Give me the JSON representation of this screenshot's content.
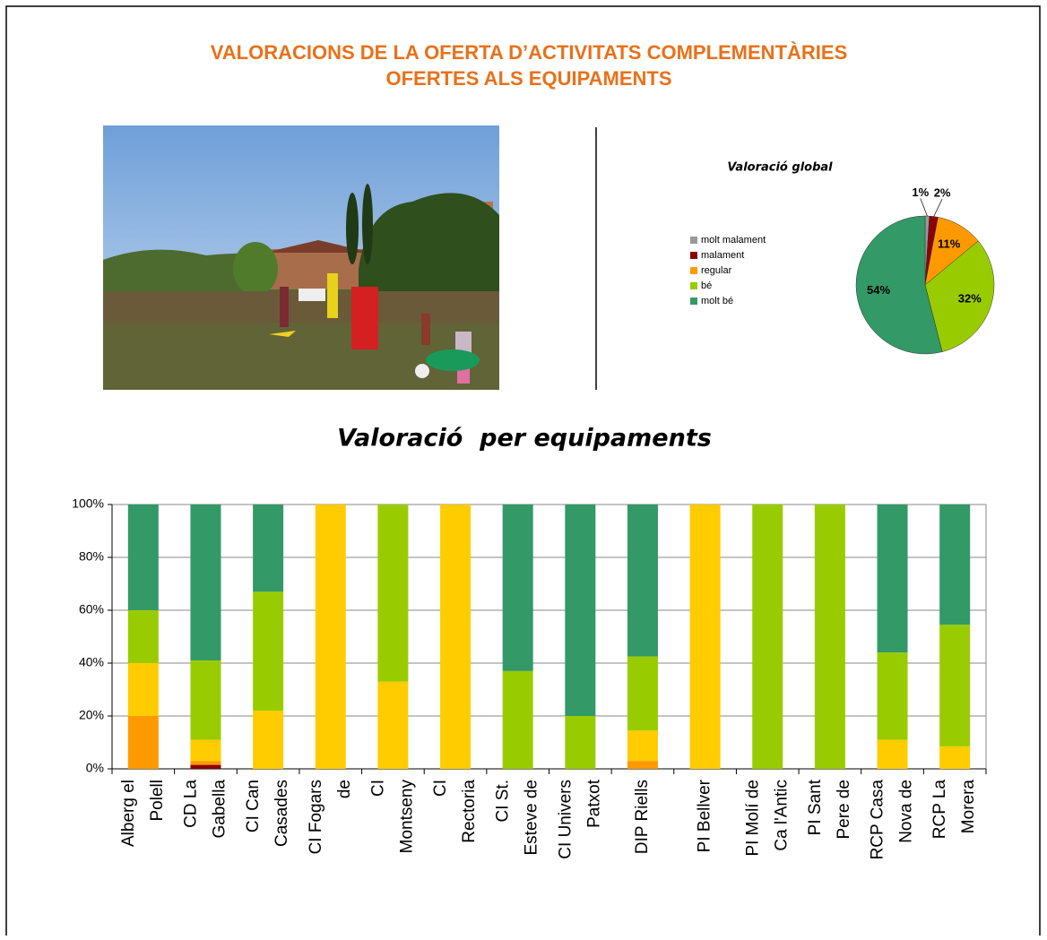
{
  "title": [
    "VALORACIONS DE LA OFERTA D’ACTIVITATS COMPLEMENTÀRIES",
    "OFERTES ALS EQUIPAMENTS"
  ],
  "chart_data": [
    {
      "type": "pie",
      "title": "Valoració global",
      "categories": [
        "molt malament",
        "malament",
        "regular",
        "bé",
        "molt bé"
      ],
      "values": [
        1,
        2,
        11,
        32,
        54
      ],
      "value_labels": [
        "1%",
        "2%",
        "11%",
        "32%",
        "54%"
      ],
      "colors": [
        "#999999",
        "#8b0000",
        "#ff9900",
        "#99cc00",
        "#339966"
      ],
      "legend": "left"
    },
    {
      "type": "bar",
      "stacked": true,
      "title": "Valoració  per equipaments",
      "categories": [
        [
          "Alberg el",
          "Polell"
        ],
        [
          "CD La",
          "Gabella"
        ],
        [
          "CI Can",
          "Casades"
        ],
        [
          "CI Fogars",
          "de"
        ],
        [
          "CI",
          "Montseny"
        ],
        [
          "CI",
          "Rectoria"
        ],
        [
          "CI St.",
          "Esteve de"
        ],
        [
          "CI Univers",
          "Patxot"
        ],
        [
          "DIP Riells"
        ],
        [
          "PI Bellver"
        ],
        [
          "PI Molí de",
          "Ca l'Antic"
        ],
        [
          "PI Sant",
          "Pere de"
        ],
        [
          "RCP Casa",
          "Nova de"
        ],
        [
          "RCP La",
          "Morera"
        ]
      ],
      "series": [
        {
          "color": "#8b0000",
          "values": [
            0,
            1.5,
            0,
            0,
            0,
            0,
            0,
            0,
            0,
            0,
            0,
            0,
            0,
            0
          ]
        },
        {
          "color": "#ff9900",
          "values": [
            20,
            1.5,
            0,
            0,
            0,
            0,
            0,
            0,
            3,
            0,
            0,
            0,
            0,
            0
          ]
        },
        {
          "color": "#ffcc00",
          "values": [
            20,
            8,
            22,
            100,
            33,
            100,
            0,
            0,
            11.5,
            100,
            0,
            0,
            11,
            8.5
          ]
        },
        {
          "color": "#99cc00",
          "values": [
            20,
            30,
            45,
            0,
            67,
            0,
            37,
            20,
            28,
            0,
            100,
            100,
            33,
            46
          ]
        },
        {
          "color": "#339966",
          "values": [
            40,
            59,
            33,
            0,
            0,
            0,
            63,
            80,
            57.5,
            0,
            0,
            0,
            56,
            45.5
          ]
        }
      ],
      "ylim": [
        0,
        100
      ],
      "yticks": [
        {
          "value": 0,
          "label": "0%"
        },
        {
          "value": 20,
          "label": "20%"
        },
        {
          "value": 40,
          "label": "40%"
        },
        {
          "value": 60,
          "label": "60%"
        },
        {
          "value": 80,
          "label": "80%"
        },
        {
          "value": 100,
          "label": "100%"
        }
      ],
      "grid": true
    }
  ]
}
